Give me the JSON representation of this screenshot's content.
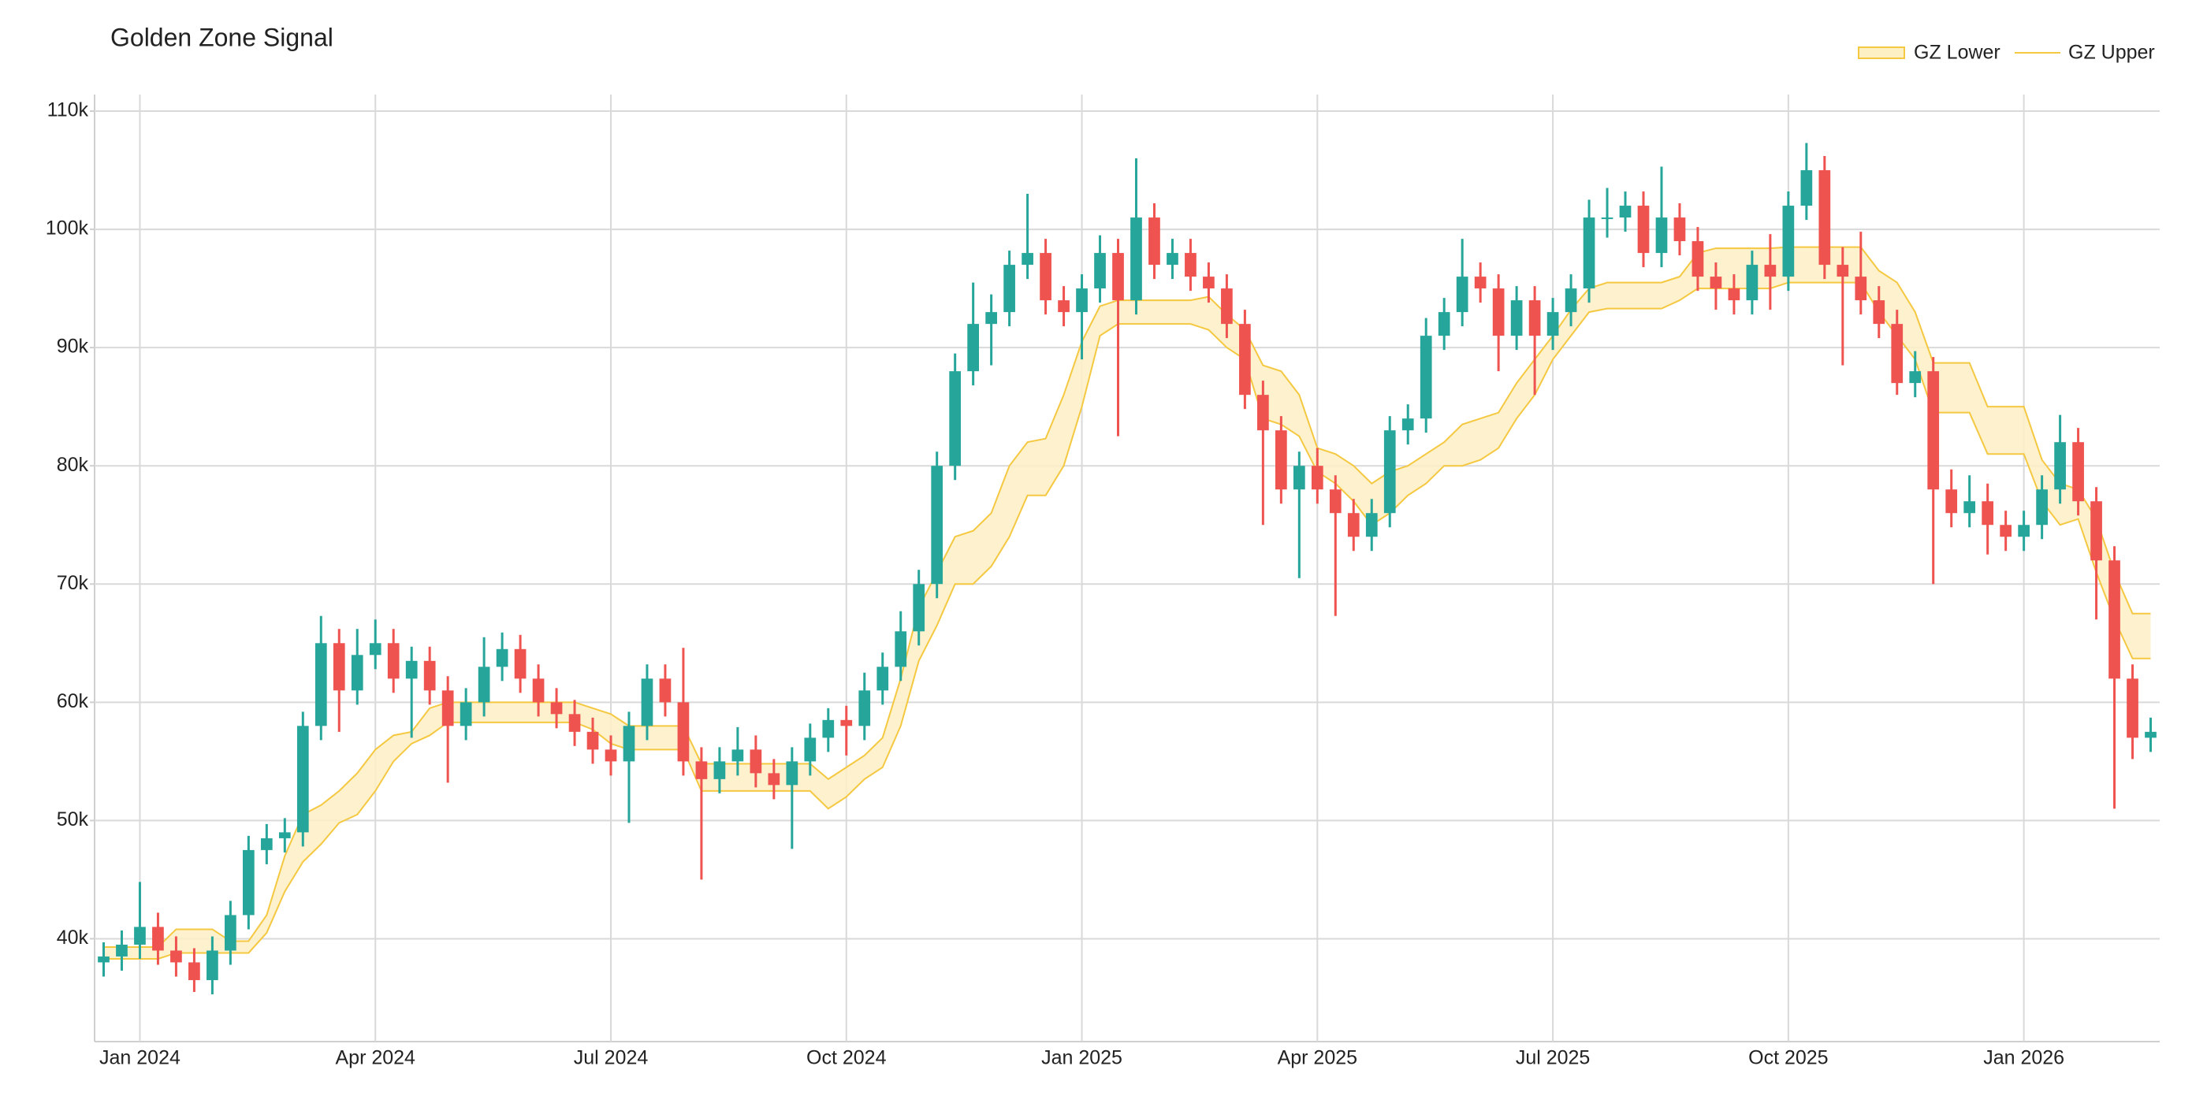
{
  "chart_data": {
    "type": "candlestick",
    "title": "Golden Zone Signal",
    "categories": [
      null,
      null,
      "Jan 2024",
      null,
      null,
      null,
      null,
      null,
      null,
      null,
      null,
      null,
      null,
      null,
      null,
      "Apr 2024",
      null,
      null,
      null,
      null,
      null,
      null,
      null,
      null,
      null,
      null,
      null,
      null,
      "Jul 2024",
      null,
      null,
      null,
      null,
      null,
      null,
      null,
      null,
      null,
      null,
      null,
      null,
      "Oct 2024",
      null,
      null,
      null,
      null,
      null,
      null,
      null,
      null,
      null,
      null,
      null,
      null,
      "Jan 2025",
      null,
      null,
      null,
      null,
      null,
      null,
      null,
      null,
      null,
      null,
      null,
      null,
      "Apr 2025",
      null,
      null,
      null,
      null,
      null,
      null,
      null,
      null,
      null,
      null,
      null,
      null,
      "Jul 2025",
      null,
      null,
      null,
      null,
      null,
      null,
      null,
      null,
      null,
      null,
      null,
      null,
      "Oct 2025",
      null,
      null,
      null,
      null,
      null,
      null,
      null,
      null,
      null,
      null,
      null,
      null,
      "Jan 2026",
      null,
      null,
      null,
      null,
      null,
      null,
      null
    ],
    "open": [
      38000,
      38500,
      39500,
      41000,
      39000,
      38000,
      36500,
      39000,
      42000,
      47500,
      48500,
      49000,
      58000,
      65000,
      61000,
      64000,
      65000,
      62000,
      63500,
      61000,
      58000,
      60000,
      63000,
      64500,
      62000,
      60000,
      59000,
      57500,
      56000,
      55000,
      58000,
      62000,
      60000,
      55000,
      53500,
      55000,
      56000,
      54000,
      53000,
      55000,
      57000,
      58500,
      58000,
      61000,
      63000,
      66000,
      70000,
      80000,
      88000,
      92000,
      93000,
      97000,
      98000,
      94000,
      93000,
      95000,
      98000,
      94000,
      101000,
      97000,
      98000,
      96000,
      95000,
      92000,
      86000,
      83000,
      78000,
      80000,
      78000,
      76000,
      74000,
      76000,
      83000,
      84000,
      91000,
      93000,
      96000,
      95000,
      91000,
      94000,
      91000,
      93000,
      95000,
      101000,
      101000,
      102000,
      98000,
      101000,
      99000,
      96000,
      95000,
      94000,
      97000,
      96000,
      102000,
      105000,
      97000,
      96000,
      94000,
      92000,
      87000,
      88000,
      78000,
      76000,
      77000,
      75000,
      74000,
      75000,
      78000,
      82000,
      77000,
      72000,
      62000,
      57000
    ],
    "high": [
      39700,
      40700,
      44800,
      42200,
      40200,
      39200,
      40200,
      43200,
      48700,
      49700,
      50200,
      59200,
      67300,
      66200,
      66200,
      67000,
      66200,
      64700,
      64700,
      62200,
      61200,
      65500,
      65900,
      65700,
      63200,
      61200,
      60200,
      58700,
      57200,
      59200,
      63200,
      63200,
      64600,
      56200,
      56200,
      57900,
      57200,
      55200,
      56200,
      58200,
      59500,
      59700,
      62500,
      64200,
      67700,
      71200,
      81200,
      89500,
      95500,
      94500,
      98200,
      103000,
      99200,
      95200,
      96200,
      99500,
      99200,
      106000,
      102200,
      99200,
      99200,
      97200,
      96200,
      93200,
      87200,
      84200,
      81200,
      81500,
      79200,
      77200,
      77200,
      84200,
      85200,
      92500,
      94200,
      99200,
      97200,
      96200,
      95200,
      95200,
      94200,
      96200,
      102500,
      103500,
      103200,
      103200,
      105300,
      102200,
      100200,
      97200,
      96200,
      98200,
      99600,
      103200,
      107300,
      106200,
      98500,
      99800,
      95200,
      93200,
      89700,
      89200,
      79700,
      79200,
      78500,
      76200,
      76200,
      79200,
      84300,
      83200,
      78200,
      73200,
      63200,
      58700
    ],
    "low": [
      36800,
      37300,
      38300,
      37800,
      36800,
      35500,
      35300,
      37800,
      40800,
      46300,
      47300,
      47800,
      56800,
      57500,
      59800,
      62800,
      60800,
      57000,
      59800,
      53200,
      56800,
      58800,
      61800,
      60800,
      58800,
      57800,
      56300,
      54800,
      53800,
      49800,
      56800,
      58800,
      53800,
      45000,
      52300,
      53800,
      52800,
      51800,
      47600,
      53800,
      55800,
      55500,
      56800,
      59800,
      61800,
      64800,
      68800,
      78800,
      86800,
      88500,
      91800,
      95800,
      92800,
      91800,
      89000,
      93800,
      82500,
      92800,
      95800,
      95800,
      94800,
      93800,
      90800,
      84800,
      75000,
      76800,
      70500,
      76800,
      67300,
      72800,
      72800,
      74800,
      81800,
      82800,
      89800,
      91800,
      93800,
      88000,
      89800,
      86000,
      89800,
      91800,
      93800,
      99300,
      99800,
      96800,
      96800,
      97800,
      94800,
      93200,
      92800,
      92800,
      93200,
      94800,
      100800,
      95800,
      88500,
      92800,
      90800,
      86000,
      85800,
      70000,
      74800,
      74800,
      72500,
      72800,
      72800,
      73800,
      76800,
      75800,
      67000,
      51000,
      55200,
      55800
    ],
    "close": [
      38500,
      39500,
      41000,
      39000,
      38000,
      36500,
      39000,
      42000,
      47500,
      48500,
      49000,
      58000,
      65000,
      61000,
      64000,
      65000,
      62000,
      63500,
      61000,
      58000,
      60000,
      63000,
      64500,
      62000,
      60000,
      59000,
      57500,
      56000,
      55000,
      58000,
      62000,
      60000,
      55000,
      53500,
      55000,
      56000,
      54000,
      53000,
      55000,
      57000,
      58500,
      58000,
      61000,
      63000,
      66000,
      70000,
      80000,
      88000,
      92000,
      93000,
      97000,
      98000,
      94000,
      93000,
      95000,
      98000,
      94000,
      101000,
      97000,
      98000,
      96000,
      95000,
      92000,
      86000,
      83000,
      78000,
      80000,
      78000,
      76000,
      74000,
      76000,
      83000,
      84000,
      91000,
      93000,
      96000,
      95000,
      91000,
      94000,
      91000,
      93000,
      95000,
      101000,
      101000,
      102000,
      98000,
      101000,
      99000,
      96000,
      95000,
      94000,
      97000,
      96000,
      102000,
      105000,
      97000,
      96000,
      94000,
      92000,
      87000,
      88000,
      78000,
      76000,
      77000,
      75000,
      74000,
      75000,
      78000,
      82000,
      77000,
      72000,
      62000,
      57000,
      57500
    ],
    "up_color": "#26a69a",
    "down_color": "#ef5350",
    "series": [
      {
        "name": "GZ Lower",
        "color": "#f5c842",
        "fill": "#fdf0c4",
        "values": [
          38300,
          38300,
          38300,
          38300,
          38800,
          38800,
          38800,
          38800,
          38800,
          40500,
          44000,
          46500,
          48000,
          49800,
          50500,
          52500,
          55000,
          56500,
          57200,
          58300,
          58300,
          58300,
          58300,
          58300,
          58300,
          58300,
          58300,
          57700,
          56500,
          56000,
          56000,
          56000,
          56000,
          52500,
          52500,
          52500,
          52500,
          52500,
          52500,
          52500,
          51000,
          52000,
          53500,
          54500,
          58000,
          63500,
          66500,
          70000,
          70000,
          71500,
          74000,
          77500,
          77500,
          80000,
          85000,
          91000,
          92000,
          92000,
          92000,
          92000,
          92000,
          91500,
          90000,
          89000,
          84000,
          83500,
          82500,
          79500,
          78500,
          77000,
          75000,
          76000,
          77500,
          78500,
          80000,
          80000,
          80500,
          81500,
          84000,
          86000,
          89000,
          91000,
          93000,
          93300,
          93300,
          93300,
          93300,
          94000,
          95000,
          95000,
          95000,
          95000,
          95000,
          95500,
          95500,
          95500,
          95500,
          95500,
          93000,
          91000,
          89000,
          84500,
          84500,
          84500,
          81000,
          81000,
          81000,
          77000,
          75000,
          75500,
          71000,
          67000,
          63700,
          63700
        ]
      },
      {
        "name": "GZ Upper",
        "color": "#f5c842",
        "values": [
          39300,
          39300,
          39300,
          39300,
          40800,
          40800,
          40800,
          39800,
          39800,
          42000,
          47000,
          50500,
          51300,
          52500,
          54000,
          56000,
          57200,
          57500,
          59500,
          60000,
          60000,
          60000,
          60000,
          60000,
          60000,
          60000,
          60000,
          59500,
          59000,
          58000,
          58000,
          58000,
          58000,
          54800,
          54800,
          54800,
          54800,
          54800,
          54800,
          54800,
          53500,
          54500,
          55500,
          57000,
          62000,
          68000,
          71000,
          74000,
          74500,
          76000,
          80000,
          82000,
          82300,
          86000,
          90500,
          93500,
          94000,
          94000,
          94000,
          94000,
          94000,
          94300,
          92800,
          91500,
          88500,
          88000,
          86000,
          81500,
          81000,
          80000,
          78500,
          79500,
          80000,
          81000,
          82000,
          83500,
          84000,
          84500,
          87000,
          89000,
          91000,
          93200,
          95000,
          95500,
          95500,
          95500,
          95500,
          96000,
          98000,
          98400,
          98400,
          98400,
          98400,
          98500,
          98500,
          98500,
          98500,
          98500,
          96500,
          95500,
          93000,
          88700,
          88700,
          88700,
          85000,
          85000,
          85000,
          80500,
          78500,
          78000,
          75500,
          71000,
          67500,
          67500
        ]
      }
    ],
    "ylim": [
      31300,
      111400
    ],
    "yticks": [
      {
        "value": 40000,
        "label": "40k"
      },
      {
        "value": 50000,
        "label": "50k"
      },
      {
        "value": 60000,
        "label": "60k"
      },
      {
        "value": 70000,
        "label": "70k"
      },
      {
        "value": 80000,
        "label": "80k"
      },
      {
        "value": 90000,
        "label": "90k"
      },
      {
        "value": 100000,
        "label": "100k"
      },
      {
        "value": 110000,
        "label": "110k"
      }
    ],
    "grid": true,
    "legend": "top-right"
  }
}
